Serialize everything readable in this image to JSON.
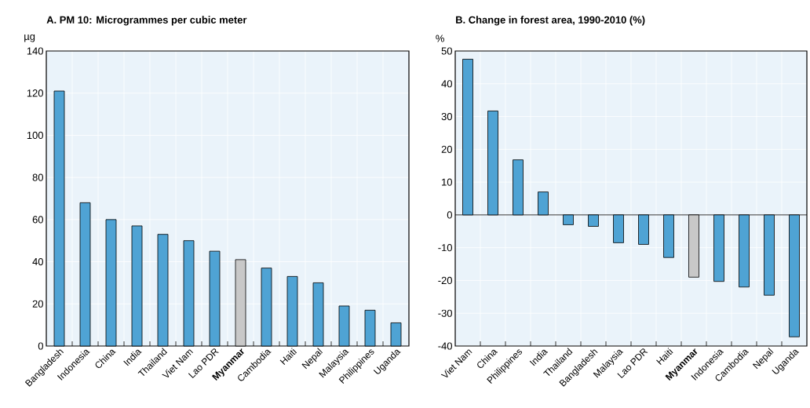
{
  "chart_data": [
    {
      "type": "bar",
      "title": "A. PM 10: Microgrammes per cubic meter",
      "ylabel": "µg",
      "categories": [
        "Bangladesh",
        "Indonesia",
        "China",
        "India",
        "Thailand",
        "Viet Nam",
        "Lao PDR",
        "**Myanmar**",
        "Cambodia",
        "Haiti",
        "Nepal",
        "Malaysia",
        "Philippines",
        "Uganda"
      ],
      "values": [
        121,
        68,
        60,
        57,
        53,
        50,
        45,
        41,
        37,
        33,
        30,
        19,
        17,
        11
      ],
      "colors": [
        "#4fa3d4",
        "#4fa3d4",
        "#4fa3d4",
        "#4fa3d4",
        "#4fa3d4",
        "#4fa3d4",
        "#4fa3d4",
        "#c8c8c8",
        "#4fa3d4",
        "#4fa3d4",
        "#4fa3d4",
        "#4fa3d4",
        "#4fa3d4",
        "#4fa3d4"
      ],
      "ylim": [
        0,
        140
      ],
      "yticks": [
        0,
        20,
        40,
        60,
        80,
        100,
        120,
        140
      ],
      "grid": true
    },
    {
      "type": "bar",
      "title": "B. Change in forest area, 1990-2010 (%)",
      "ylabel": "%",
      "categories": [
        "Viet Nam",
        "China",
        "Philippines",
        "India",
        "Thailand",
        "Bangladesh",
        "Malaysia",
        "Lao PDR",
        "Haiti",
        "**Myanmar**",
        "Indonesia",
        "Cambodia",
        "Nepal",
        "Uganda"
      ],
      "values": [
        47.5,
        31.7,
        16.8,
        7,
        -3,
        -3.5,
        -8.5,
        -9,
        -13,
        -19,
        -20.3,
        -22,
        -24.5,
        -37.2
      ],
      "colors": [
        "#4fa3d4",
        "#4fa3d4",
        "#4fa3d4",
        "#4fa3d4",
        "#4fa3d4",
        "#4fa3d4",
        "#4fa3d4",
        "#4fa3d4",
        "#4fa3d4",
        "#c8c8c8",
        "#4fa3d4",
        "#4fa3d4",
        "#4fa3d4",
        "#4fa3d4"
      ],
      "ylim": [
        -40,
        50
      ],
      "yticks": [
        -40,
        -30,
        -20,
        -10,
        0,
        10,
        20,
        30,
        40,
        50
      ],
      "grid": true
    }
  ]
}
